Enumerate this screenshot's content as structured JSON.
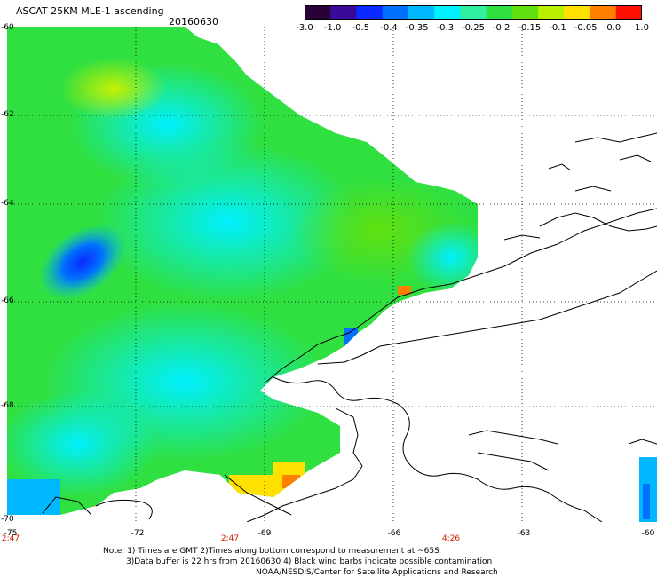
{
  "header": {
    "title": "ASCAT 25KM MLE-1 ascending",
    "date": "20160630"
  },
  "colorbar": {
    "labels": [
      "-3.0",
      "-1.0",
      "-0.5",
      "-0.4",
      "-0.35",
      "-0.3",
      "-0.25",
      "-0.2",
      "-0.15",
      "-0.1",
      "-0.05",
      "0.0",
      "1.0"
    ],
    "colors": [
      "#2a0038",
      "#3a0a9a",
      "#0a2aff",
      "#0070ff",
      "#00b8ff",
      "#00f0ff",
      "#30f0a0",
      "#30e040",
      "#60e010",
      "#b8f000",
      "#ffe000",
      "#ff8000",
      "#ff1000"
    ]
  },
  "map": {
    "lat_labels": [
      "-60",
      "-62",
      "-64",
      "-66",
      "-68",
      "-70"
    ],
    "lon_labels": [
      "-75",
      "-72",
      "-69",
      "-66",
      "-63",
      "-60"
    ],
    "time_labels": [
      "2:47",
      "2:47",
      "4:26"
    ]
  },
  "notes": {
    "line1": "Note: 1) Times are GMT 2)Times along bottom correspond to measurement at ~65S",
    "line2": "3)Data buffer is 22 hrs from 20160630 4) Black wind barbs indicate possible contamination",
    "line3": "NOAA/NESDIS/Center for Satellite Applications and Research"
  }
}
